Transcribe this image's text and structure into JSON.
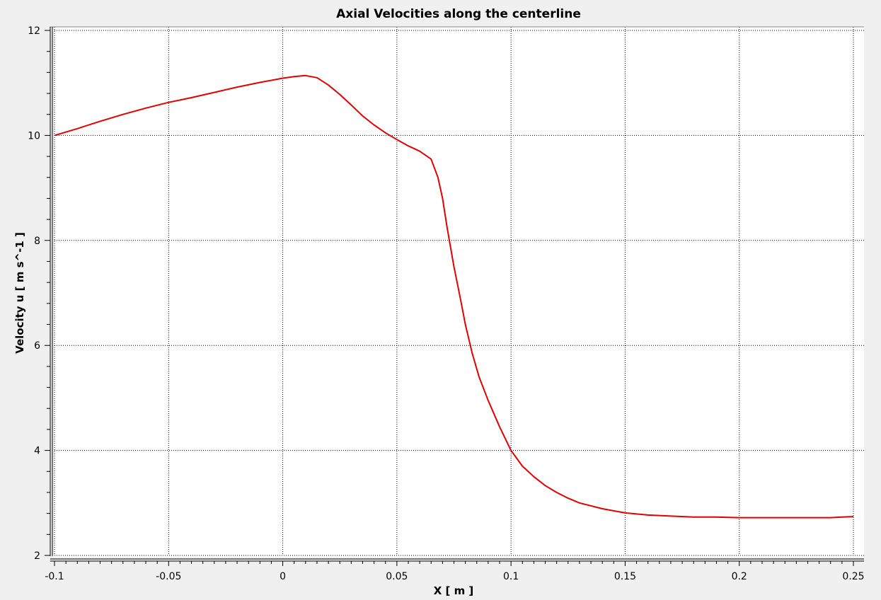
{
  "chart_data": {
    "type": "line",
    "title": "Axial Velocities along the centerline",
    "xlabel": "X [ m ]",
    "ylabel": "Velocity u [ m s^-1 ]",
    "xlim": [
      -0.1,
      0.25
    ],
    "ylim": [
      2,
      12
    ],
    "x_ticks": [
      -0.1,
      -0.05,
      0,
      0.05,
      0.1,
      0.15,
      0.2,
      0.25
    ],
    "x_tick_labels": [
      "-0.1",
      "-0.05",
      "0",
      "0.05",
      "0.1",
      "0.15",
      "0.2",
      "0.25"
    ],
    "y_ticks": [
      2,
      4,
      6,
      8,
      10,
      12
    ],
    "y_tick_labels": [
      "2",
      "4",
      "6",
      "8",
      "10",
      "12"
    ],
    "grid": true,
    "line_color": "#e00000",
    "series": [
      {
        "x": [
          -0.1,
          -0.09,
          -0.08,
          -0.07,
          -0.06,
          -0.05,
          -0.04,
          -0.03,
          -0.02,
          -0.01,
          0,
          0.005,
          0.01,
          0.015,
          0.02,
          0.025,
          0.03,
          0.035,
          0.04,
          0.045,
          0.05,
          0.055,
          0.06,
          0.065,
          0.068,
          0.07,
          0.072,
          0.075,
          0.078,
          0.08,
          0.083,
          0.086,
          0.09,
          0.095,
          0.1,
          0.105,
          0.11,
          0.115,
          0.12,
          0.125,
          0.13,
          0.14,
          0.15,
          0.16,
          0.17,
          0.18,
          0.19,
          0.2,
          0.21,
          0.22,
          0.23,
          0.24,
          0.245,
          0.25
        ],
        "y": [
          10.0,
          10.13,
          10.27,
          10.4,
          10.52,
          10.63,
          10.72,
          10.82,
          10.92,
          11.01,
          11.09,
          11.12,
          11.14,
          11.1,
          10.96,
          10.78,
          10.58,
          10.37,
          10.2,
          10.05,
          9.92,
          9.8,
          9.7,
          9.55,
          9.2,
          8.8,
          8.25,
          7.5,
          6.85,
          6.4,
          5.85,
          5.4,
          4.95,
          4.45,
          4.0,
          3.7,
          3.5,
          3.33,
          3.2,
          3.09,
          3.0,
          2.89,
          2.81,
          2.77,
          2.75,
          2.73,
          2.73,
          2.72,
          2.72,
          2.72,
          2.72,
          2.72,
          2.73,
          2.74
        ]
      }
    ]
  }
}
